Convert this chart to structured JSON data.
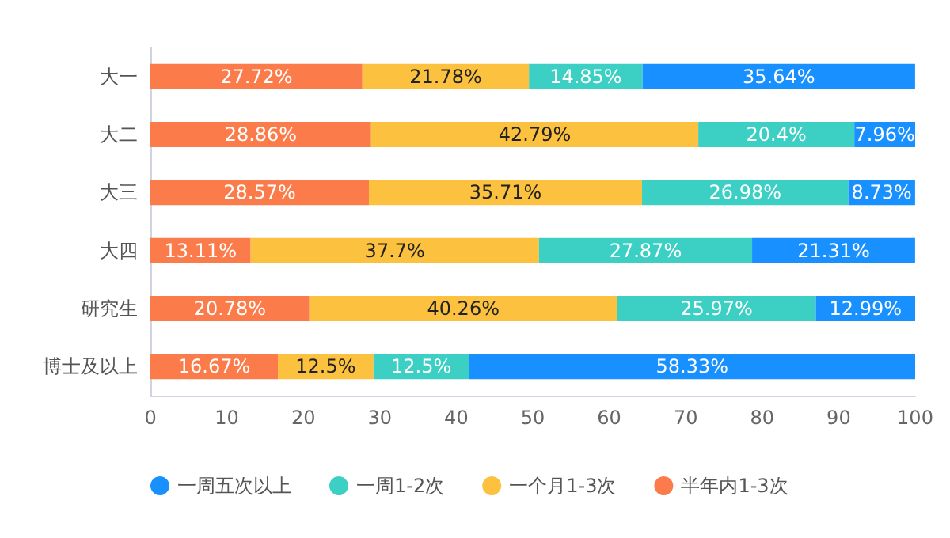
{
  "chart_data": {
    "type": "bar",
    "orientation": "horizontal",
    "stacked": true,
    "categories": [
      "大一",
      "大二",
      "大三",
      "大四",
      "研究生",
      "博士及以上"
    ],
    "series": [
      {
        "name": "半年内1-3次",
        "color": "#fb7c4a",
        "values": [
          27.72,
          28.86,
          28.57,
          13.11,
          20.78,
          16.67
        ],
        "value_labels": [
          "27.72%",
          "28.86%",
          "28.57%",
          "13.11%",
          "20.78%",
          "16.67%"
        ]
      },
      {
        "name": "一个月1-3次",
        "color": "#fcc23f",
        "values": [
          21.78,
          42.79,
          35.71,
          37.7,
          40.26,
          12.5
        ],
        "value_labels": [
          "21.78%",
          "42.79%",
          "35.71%",
          "37.7%",
          "40.26%",
          "12.5%"
        ]
      },
      {
        "name": "一周1-2次",
        "color": "#3ccfc4",
        "values": [
          14.85,
          20.4,
          26.98,
          27.87,
          25.97,
          12.5
        ],
        "value_labels": [
          "14.85%",
          "20.4%",
          "26.98%",
          "27.87%",
          "25.97%",
          "12.5%"
        ]
      },
      {
        "name": "一周五次以上",
        "color": "#1890ff",
        "values": [
          35.64,
          7.96,
          8.73,
          21.31,
          12.99,
          58.33
        ],
        "value_labels": [
          "35.64%",
          "7.96%",
          "8.73%",
          "21.31%",
          "12.99%",
          "58.33%"
        ]
      }
    ],
    "xlim": [
      0,
      100
    ],
    "xticks": [
      0,
      10,
      20,
      30,
      40,
      50,
      60,
      70,
      80,
      90,
      100
    ],
    "grid": false,
    "legend": "bottom left"
  }
}
